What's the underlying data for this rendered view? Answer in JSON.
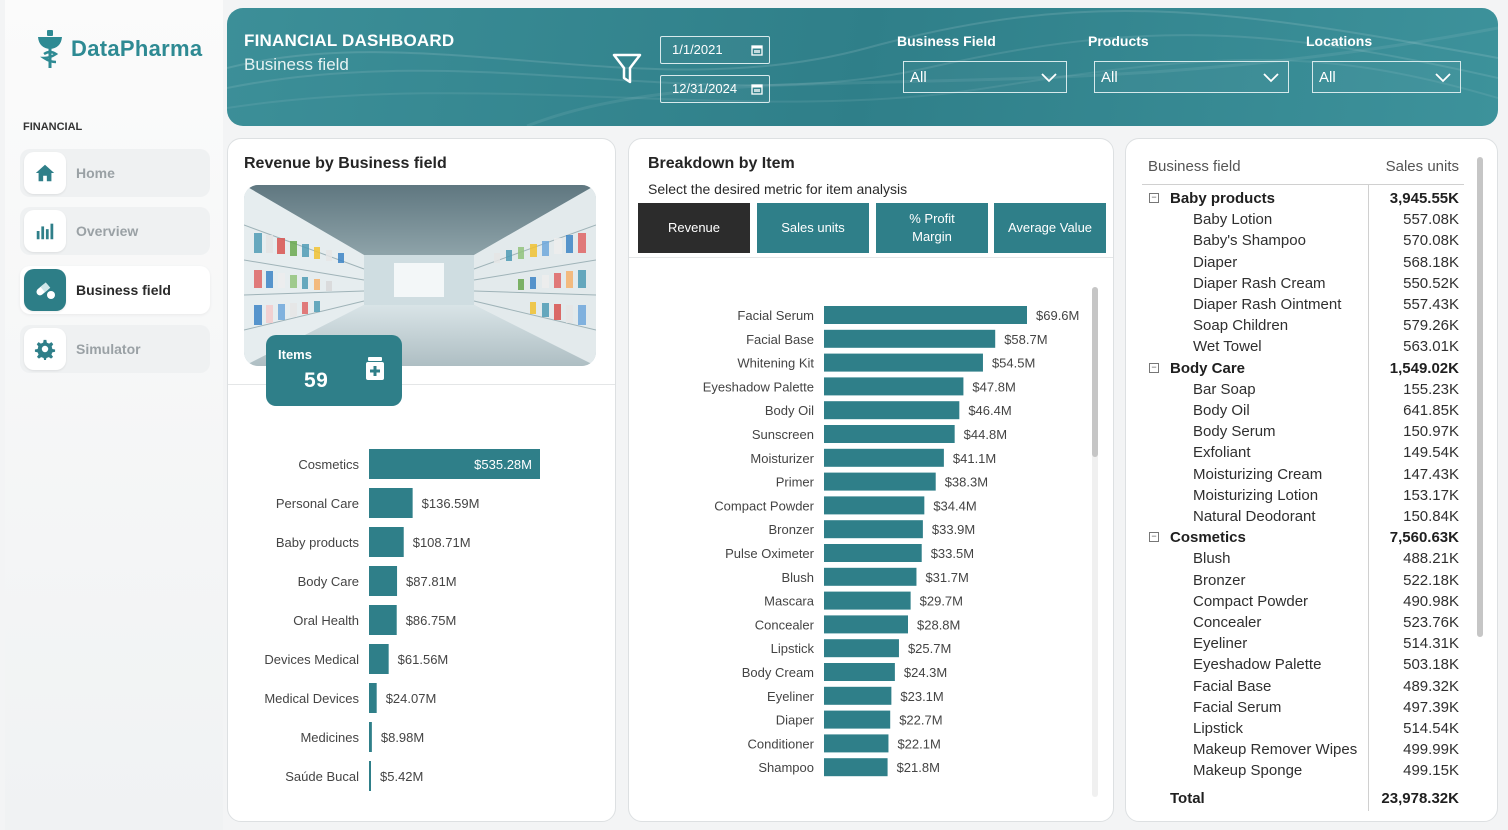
{
  "app": {
    "name": "DataPharma"
  },
  "nav": {
    "section": "FINANCIAL",
    "items": [
      {
        "label": "Home",
        "icon": "home-icon",
        "active": false
      },
      {
        "label": "Overview",
        "icon": "bar-chart-icon",
        "active": false
      },
      {
        "label": "Business field",
        "icon": "pills-icon",
        "active": true
      },
      {
        "label": "Simulator",
        "icon": "gear-icon",
        "active": false
      }
    ]
  },
  "header": {
    "title": "FINANCIAL DASHBOARD",
    "subtitle": "Business field",
    "date_start": "1/1/2021",
    "date_end": "12/31/2024",
    "filters": [
      {
        "label": "Business Field",
        "value": "All"
      },
      {
        "label": "Products",
        "value": "All"
      },
      {
        "label": "Locations",
        "value": "All"
      }
    ]
  },
  "revenue_card": {
    "title": "Revenue by Business field",
    "items_label": "Items",
    "items_value": "59"
  },
  "breakdown_card": {
    "title": "Breakdown by Item",
    "subtitle": "Select the desired metric for item analysis",
    "tabs": [
      "Revenue",
      "Sales units",
      "% Profit Margin",
      "Average Value"
    ],
    "active_tab": "Revenue"
  },
  "chart_data": [
    {
      "type": "bar",
      "orientation": "horizontal",
      "title": "Revenue by Business field",
      "categories": [
        "Cosmetics",
        "Personal Care",
        "Baby products",
        "Body Care",
        "Oral Health",
        "Devices Medical",
        "Medical Devices",
        "Medicines",
        "Saúde Bucal"
      ],
      "values": [
        535.28,
        136.59,
        108.71,
        87.81,
        86.75,
        61.56,
        24.07,
        8.98,
        5.42
      ],
      "labels": [
        "$535.28M",
        "$136.59M",
        "$108.71M",
        "$87.81M",
        "$86.75M",
        "$61.56M",
        "$24.07M",
        "$8.98M",
        "$5.42M"
      ],
      "color": "#2f7f89"
    },
    {
      "type": "bar",
      "orientation": "horizontal",
      "title": "Breakdown by Item",
      "categories": [
        "Facial Serum",
        "Facial Base",
        "Whitening Kit",
        "Eyeshadow Palette",
        "Body Oil",
        "Sunscreen",
        "Moisturizer",
        "Primer",
        "Compact Powder",
        "Bronzer",
        "Pulse Oximeter",
        "Blush",
        "Mascara",
        "Concealer",
        "Lipstick",
        "Body Cream",
        "Eyeliner",
        "Diaper",
        "Conditioner",
        "Shampoo"
      ],
      "values": [
        69.6,
        58.7,
        54.5,
        47.8,
        46.4,
        44.8,
        41.1,
        38.3,
        34.4,
        33.9,
        33.5,
        31.7,
        29.7,
        28.8,
        25.7,
        24.3,
        23.1,
        22.7,
        22.1,
        21.8
      ],
      "labels": [
        "$69.6M",
        "$58.7M",
        "$54.5M",
        "$47.8M",
        "$46.4M",
        "$44.8M",
        "$41.1M",
        "$38.3M",
        "$34.4M",
        "$33.9M",
        "$33.5M",
        "$31.7M",
        "$29.7M",
        "$28.8M",
        "$25.7M",
        "$24.3M",
        "$23.1M",
        "$22.7M",
        "$22.1M",
        "$21.8M"
      ],
      "color": "#2f7f89"
    }
  ],
  "table": {
    "col1": "Business field",
    "col2": "Sales units",
    "rows": [
      {
        "name": "Baby products",
        "value": "3,945.55K",
        "group": true
      },
      {
        "name": "Baby Lotion",
        "value": "557.08K"
      },
      {
        "name": "Baby's Shampoo",
        "value": "570.08K"
      },
      {
        "name": "Diaper",
        "value": "568.18K"
      },
      {
        "name": "Diaper Rash Cream",
        "value": "550.52K"
      },
      {
        "name": "Diaper Rash Ointment",
        "value": "557.43K"
      },
      {
        "name": "Soap Children",
        "value": "579.26K"
      },
      {
        "name": "Wet Towel",
        "value": "563.01K"
      },
      {
        "name": "Body Care",
        "value": "1,549.02K",
        "group": true
      },
      {
        "name": "Bar Soap",
        "value": "155.23K"
      },
      {
        "name": "Body Oil",
        "value": "641.85K"
      },
      {
        "name": "Body Serum",
        "value": "150.97K"
      },
      {
        "name": "Exfoliant",
        "value": "149.54K"
      },
      {
        "name": "Moisturizing Cream",
        "value": "147.43K"
      },
      {
        "name": "Moisturizing Lotion",
        "value": "153.17K"
      },
      {
        "name": "Natural Deodorant",
        "value": "150.84K"
      },
      {
        "name": "Cosmetics",
        "value": "7,560.63K",
        "group": true
      },
      {
        "name": "Blush",
        "value": "488.21K"
      },
      {
        "name": "Bronzer",
        "value": "522.18K"
      },
      {
        "name": "Compact Powder",
        "value": "490.98K"
      },
      {
        "name": "Concealer",
        "value": "523.76K"
      },
      {
        "name": "Eyeliner",
        "value": "514.31K"
      },
      {
        "name": "Eyeshadow Palette",
        "value": "503.18K"
      },
      {
        "name": "Facial Base",
        "value": "489.32K"
      },
      {
        "name": "Facial Serum",
        "value": "497.39K"
      },
      {
        "name": "Lipstick",
        "value": "514.54K"
      },
      {
        "name": "Makeup Remover Wipes",
        "value": "499.99K"
      },
      {
        "name": "Makeup Sponge",
        "value": "499.15K"
      }
    ],
    "total_label": "Total",
    "total_value": "23,978.32K"
  }
}
